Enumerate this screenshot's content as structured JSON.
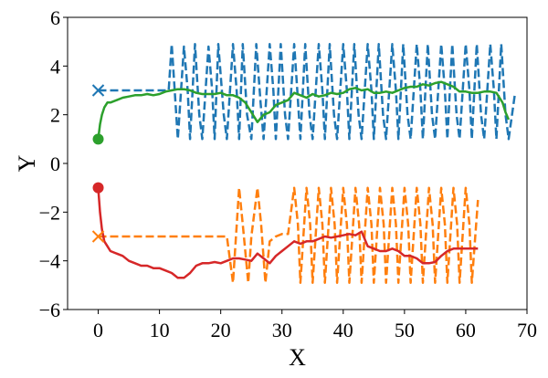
{
  "chart_data": {
    "type": "line",
    "title": "",
    "xlabel": "X",
    "ylabel": "Y",
    "xlim": [
      -5,
      70
    ],
    "ylim": [
      -6,
      6
    ],
    "xticks": [
      0,
      10,
      20,
      30,
      40,
      50,
      60,
      70
    ],
    "yticks": [
      -6,
      -4,
      -2,
      0,
      2,
      4,
      6
    ],
    "xtick_labels": [
      "0",
      "10",
      "20",
      "30",
      "40",
      "50",
      "60",
      "70"
    ],
    "ytick_labels": [
      "−6",
      "−4",
      "−2",
      "0",
      "2",
      "4",
      "6"
    ],
    "grid": false,
    "colors": {
      "blue": "#1f77b4",
      "orange": "#ff7f0e",
      "green": "#2ca02c",
      "red": "#d62728"
    },
    "series": [
      {
        "color": "#1f77b4",
        "style": "dashed",
        "start_marker": "x",
        "x": [
          0,
          11.5,
          12,
          13,
          14,
          14.6,
          15,
          15.8,
          16.5,
          17,
          18,
          18.6,
          19,
          19.6,
          20.5,
          21,
          22,
          22.6,
          23,
          23.6,
          24.3,
          25,
          25.8,
          26.5,
          27,
          28,
          28.6,
          29,
          29.8,
          30.5,
          31,
          32,
          32.5,
          33,
          33.8,
          34.5,
          35,
          36,
          36.6,
          37,
          37.8,
          38.5,
          39,
          40,
          40.6,
          41,
          41.8,
          42.5,
          43,
          44,
          44.6,
          45,
          45.8,
          46.5,
          47,
          48,
          48.6,
          49,
          49.8,
          50.5,
          51,
          52,
          52.6,
          53,
          53.8,
          54.5,
          55,
          56,
          56.6,
          57,
          57.8,
          58.5,
          59,
          60,
          60.6,
          61,
          61.8,
          62.5,
          63,
          64,
          64.6,
          65,
          65.8,
          66.5,
          67,
          68
        ],
        "y": [
          3,
          3,
          4.9,
          1,
          4.8,
          3,
          1,
          4.9,
          2,
          1,
          4.8,
          3,
          1,
          4.9,
          2,
          1,
          4.9,
          3,
          1,
          4.9,
          2,
          1,
          4.9,
          2.5,
          1,
          4.9,
          3,
          1,
          4.9,
          2,
          1,
          4.9,
          3,
          1,
          4.9,
          2,
          1,
          4.9,
          3,
          1,
          4.9,
          2,
          1,
          4.9,
          3,
          1,
          4.9,
          2,
          1,
          4.9,
          3,
          1,
          4.9,
          2,
          1,
          4.9,
          3,
          1,
          4.9,
          2,
          1,
          4.9,
          3,
          1,
          4.9,
          2,
          1,
          4.9,
          3,
          1,
          4.9,
          2,
          1,
          4.9,
          3,
          1,
          4.9,
          2,
          1,
          4.9,
          3,
          1,
          4.9,
          2,
          1,
          2.8
        ]
      },
      {
        "color": "#ff7f0e",
        "style": "dashed",
        "start_marker": "x",
        "x": [
          0,
          21,
          22,
          23,
          23.6,
          24.5,
          25,
          26,
          26.6,
          27.3,
          28,
          29,
          30,
          31,
          32,
          32.6,
          33,
          34,
          34.6,
          35,
          36,
          36.6,
          37,
          38,
          38.6,
          39,
          40,
          40.6,
          41,
          42,
          42.6,
          43,
          44,
          44.6,
          45,
          46,
          46.6,
          47,
          48,
          48.6,
          49,
          50,
          50.6,
          51,
          52,
          52.6,
          53,
          54,
          54.6,
          55,
          56,
          56.6,
          57,
          58,
          58.6,
          59,
          60,
          60.6,
          61,
          62
        ],
        "y": [
          -3,
          -3,
          -4.9,
          -1,
          -2.5,
          -4.9,
          -3,
          -1,
          -2.5,
          -4.9,
          -3.2,
          -3,
          -2.9,
          -2.9,
          -1,
          -2.5,
          -4.9,
          -1,
          -2.5,
          -4.9,
          -1,
          -2.5,
          -4.9,
          -1,
          -2.5,
          -4.9,
          -1,
          -2.5,
          -4.9,
          -1,
          -2.5,
          -4.9,
          -1,
          -2.5,
          -4.9,
          -1,
          -2.5,
          -4.9,
          -1,
          -2.5,
          -4.9,
          -1,
          -2.5,
          -4.9,
          -1,
          -2.5,
          -4.9,
          -1,
          -2.5,
          -4.9,
          -1,
          -2.5,
          -4.9,
          -1,
          -2.5,
          -4.9,
          -1,
          -2.5,
          -4.9,
          -1.5
        ]
      },
      {
        "color": "#2ca02c",
        "style": "solid",
        "start_marker": "o",
        "x": [
          0,
          0.3,
          0.6,
          1,
          1.5,
          2,
          3,
          4,
          5,
          6,
          7,
          8,
          9,
          10,
          11,
          12,
          13,
          14,
          15,
          16,
          17,
          18,
          19,
          20,
          21,
          22,
          23,
          24,
          25,
          26,
          27,
          28,
          29,
          30,
          31,
          32,
          33,
          34,
          35,
          36,
          37,
          38,
          39,
          40,
          41,
          42,
          43,
          44,
          45,
          46,
          47,
          48,
          49,
          50,
          51,
          52,
          53,
          54,
          55,
          56,
          57,
          58,
          59,
          60,
          61,
          62,
          63,
          64,
          65,
          66,
          66.5,
          67
        ],
        "y": [
          1,
          1.6,
          2,
          2.3,
          2.5,
          2.5,
          2.6,
          2.7,
          2.75,
          2.8,
          2.8,
          2.85,
          2.8,
          2.85,
          2.95,
          3.0,
          3.05,
          3.05,
          3.0,
          2.9,
          2.85,
          2.85,
          2.85,
          2.9,
          2.8,
          2.8,
          2.7,
          2.5,
          2.1,
          1.7,
          2.0,
          2.1,
          2.4,
          2.5,
          2.6,
          2.9,
          2.8,
          2.7,
          2.85,
          2.75,
          2.8,
          2.9,
          2.85,
          2.9,
          3.05,
          3.1,
          3.0,
          3.05,
          2.9,
          2.9,
          2.95,
          2.9,
          3.0,
          3.1,
          3.15,
          3.15,
          3.25,
          3.2,
          3.3,
          3.35,
          3.25,
          3.15,
          2.95,
          2.95,
          2.9,
          2.9,
          2.95,
          2.95,
          2.9,
          2.5,
          2.1,
          1.8
        ]
      },
      {
        "color": "#d62728",
        "style": "solid",
        "start_marker": "o",
        "x": [
          0,
          0.3,
          0.6,
          1,
          1.5,
          2,
          3,
          4,
          5,
          6,
          7,
          8,
          9,
          10,
          11,
          12,
          13,
          14,
          15,
          16,
          17,
          18,
          19,
          20,
          21,
          22,
          23,
          24,
          25,
          26,
          27,
          28,
          29,
          30,
          31,
          32,
          33,
          34,
          35,
          36,
          37,
          38,
          39,
          40,
          41,
          42,
          43,
          44,
          45,
          46,
          47,
          48,
          49,
          50,
          51,
          52,
          53,
          54,
          55,
          56,
          57,
          58,
          59,
          60,
          61,
          62
        ],
        "y": [
          -1,
          -2,
          -2.7,
          -3.2,
          -3.4,
          -3.6,
          -3.7,
          -3.8,
          -4.0,
          -4.1,
          -4.2,
          -4.2,
          -4.3,
          -4.3,
          -4.4,
          -4.5,
          -4.7,
          -4.7,
          -4.5,
          -4.2,
          -4.1,
          -4.1,
          -4.05,
          -4.1,
          -4.0,
          -3.9,
          -3.9,
          -3.95,
          -4.0,
          -3.7,
          -3.9,
          -4.1,
          -3.8,
          -3.6,
          -3.4,
          -3.2,
          -3.3,
          -3.2,
          -3.2,
          -3.1,
          -3.0,
          -3.05,
          -3.0,
          -2.95,
          -2.9,
          -2.95,
          -2.8,
          -3.4,
          -3.5,
          -3.6,
          -3.6,
          -3.5,
          -3.6,
          -3.8,
          -3.8,
          -3.9,
          -4.1,
          -4.1,
          -4.05,
          -3.8,
          -3.6,
          -3.5,
          -3.5,
          -3.5,
          -3.5,
          -3.5
        ]
      }
    ]
  }
}
